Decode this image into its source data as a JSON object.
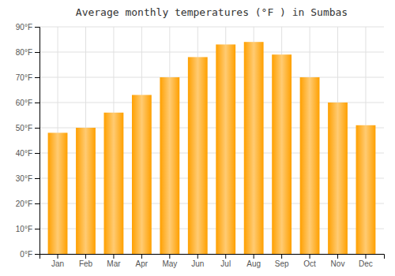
{
  "chart_data": {
    "type": "bar",
    "title": "Average monthly temperatures (°F ) in Sumbas",
    "categories": [
      "Jan",
      "Feb",
      "Mar",
      "Apr",
      "May",
      "Jun",
      "Jul",
      "Aug",
      "Sep",
      "Oct",
      "Nov",
      "Dec"
    ],
    "values": [
      48,
      50,
      56,
      63,
      70,
      78,
      83,
      84,
      79,
      70,
      60,
      51
    ],
    "color": "#FFA000",
    "ylim": [
      0,
      90
    ],
    "yticks": [
      {
        "value": 0,
        "label": "0°F"
      },
      {
        "value": 10,
        "label": "10°F"
      },
      {
        "value": 20,
        "label": "20°F"
      },
      {
        "value": 30,
        "label": "30°F"
      },
      {
        "value": 40,
        "label": "40°F"
      },
      {
        "value": 50,
        "label": "50°F"
      },
      {
        "value": 60,
        "label": "60°F"
      },
      {
        "value": 70,
        "label": "70°F"
      },
      {
        "value": 80,
        "label": "80°F"
      },
      {
        "value": 90,
        "label": "90°F"
      }
    ],
    "grid": true
  }
}
